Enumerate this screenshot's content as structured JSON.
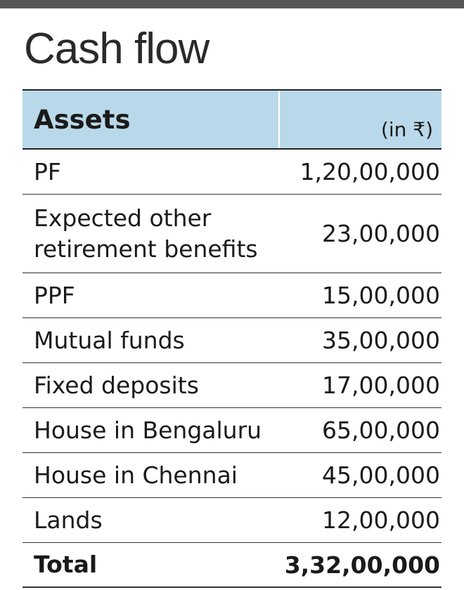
{
  "title": "Cash flow",
  "table": {
    "header": {
      "label": "Assets",
      "unit": "(in ₹)"
    },
    "rows": [
      {
        "name": "PF",
        "value": "1,20,00,000"
      },
      {
        "name": "Expected other retirement benefits",
        "value": "23,00,000"
      },
      {
        "name": "PPF",
        "value": "15,00,000"
      },
      {
        "name": "Mutual funds",
        "value": "35,00,000"
      },
      {
        "name": "Fixed deposits",
        "value": "17,00,000"
      },
      {
        "name": "House in Bengaluru",
        "value": "65,00,000"
      },
      {
        "name": "House in Chennai",
        "value": "45,00,000"
      },
      {
        "name": "Lands",
        "value": "12,00,000"
      }
    ],
    "total": {
      "name": "Total",
      "value": "3,32,00,000"
    }
  },
  "colors": {
    "header_bg": "#b9d9ea",
    "top_bar": "#555555"
  }
}
